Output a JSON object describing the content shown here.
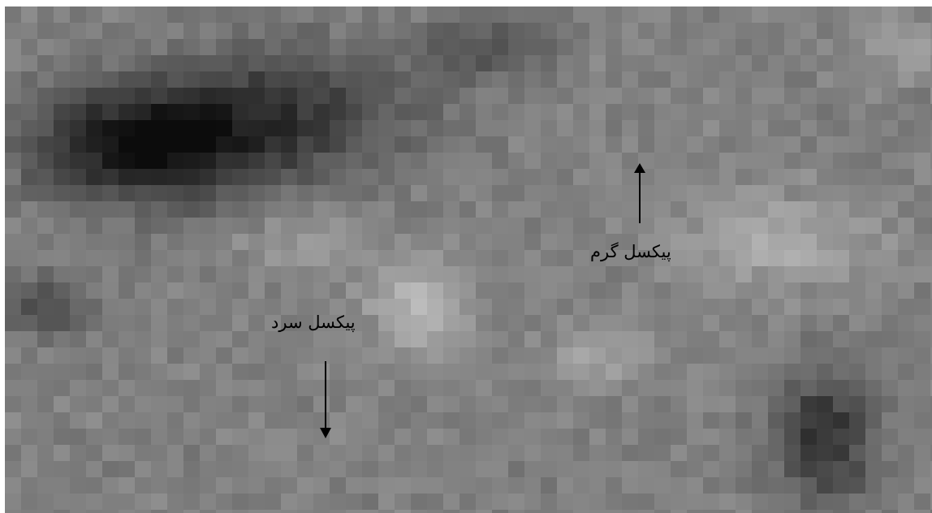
{
  "image": {
    "type": "pixelated grayscale thermal image",
    "colors": {
      "black_arrow": "#000000",
      "label_text": "#000000",
      "background": "#ffffff"
    }
  },
  "annotations": {
    "hot_pixel_label": "پیکسل گرم",
    "cold_pixel_label": "پیکسل سرد",
    "hot_arrow_icon": "arrow-up-icon",
    "cold_arrow_icon": "arrow-down-icon"
  }
}
